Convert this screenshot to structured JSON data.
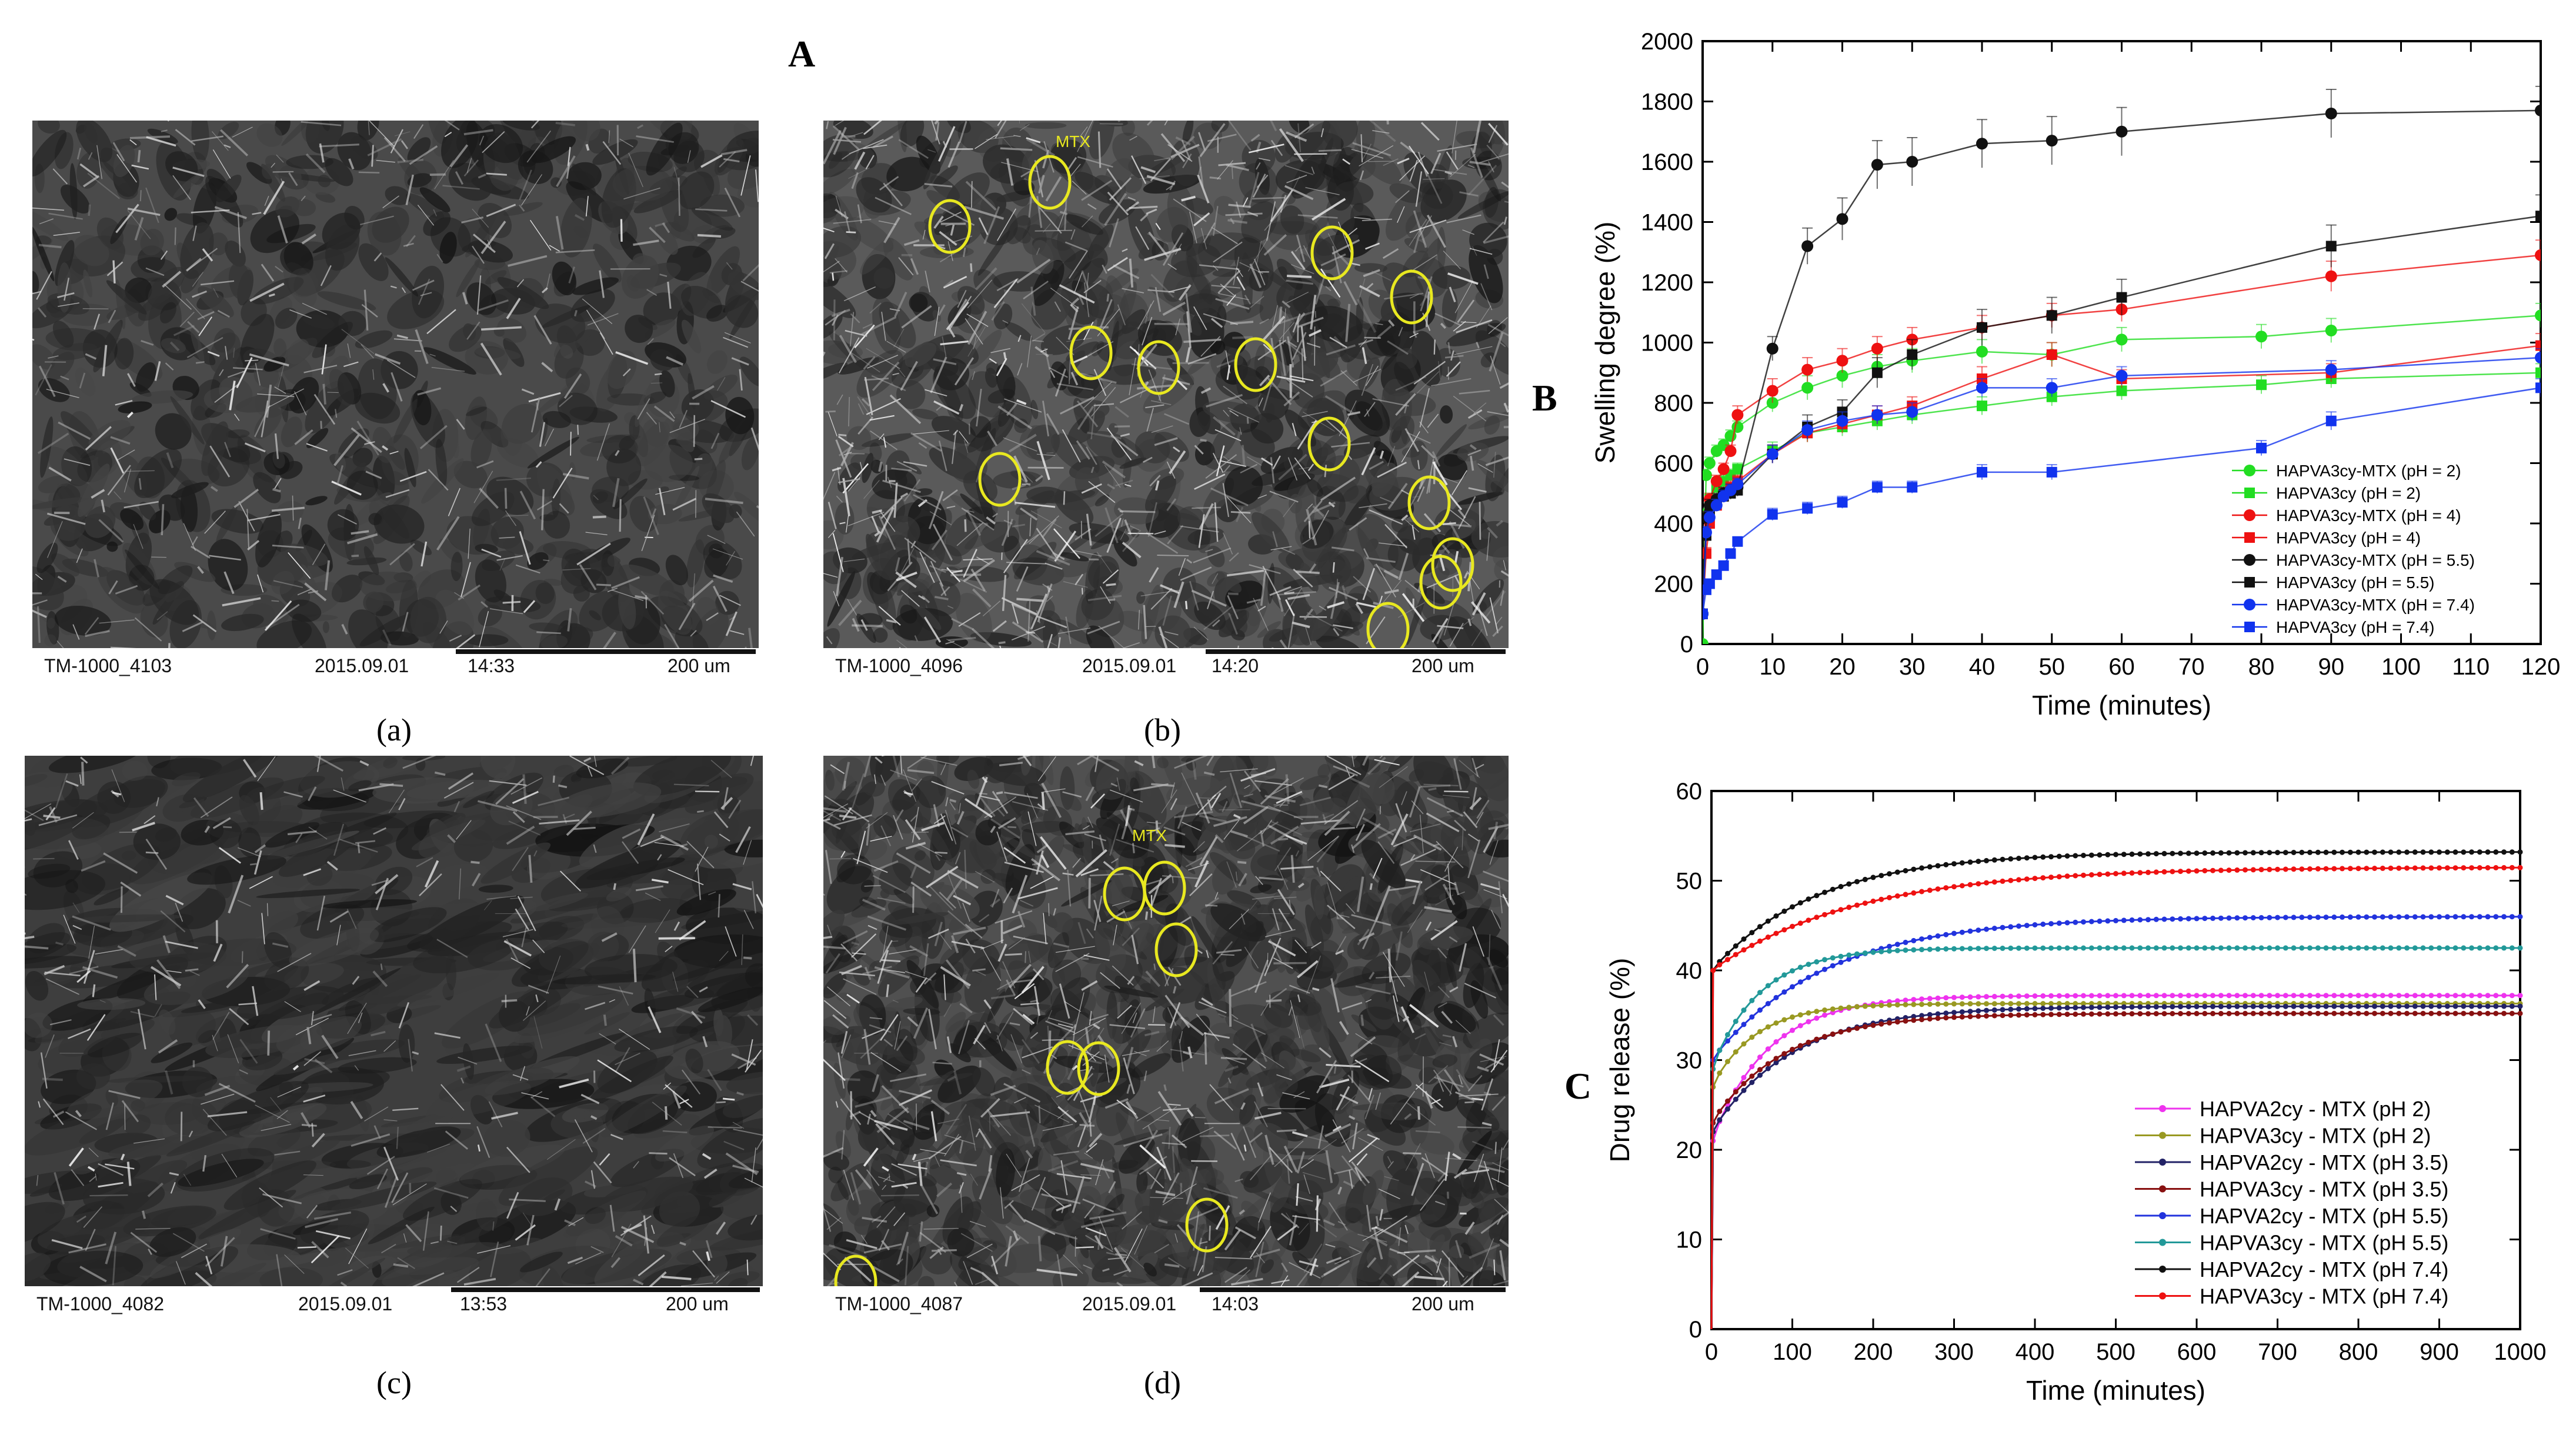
{
  "figure": {
    "label_A": "A",
    "label_B": "B",
    "label_C": "C"
  },
  "sem_panels": [
    {
      "id": "a",
      "caption": "(a)",
      "code": "TM-1000_4103",
      "date": "2015.09.01",
      "time": "14:33",
      "scale": "200 um",
      "mtx_label": ""
    },
    {
      "id": "b",
      "caption": "(b)",
      "code": "TM-1000_4096",
      "date": "2015.09.01",
      "time": "14:20",
      "scale": "200 um",
      "mtx_label": "MTX"
    },
    {
      "id": "c",
      "caption": "(c)",
      "code": "TM-1000_4082",
      "date": "2015.09.01",
      "time": "13:53",
      "scale": "200 um",
      "mtx_label": ""
    },
    {
      "id": "d",
      "caption": "(d)",
      "code": "TM-1000_4087",
      "date": "2015.09.01",
      "time": "14:03",
      "scale": "200 um",
      "mtx_label": "MTX"
    }
  ],
  "colors": {
    "green": "#22dd22",
    "red": "#ee1111",
    "black": "#111111",
    "blue": "#1133ee",
    "magenta": "#ee33ee",
    "olive": "#999922",
    "navy": "#222266",
    "darkred": "#881111",
    "blue2": "#2233dd",
    "teal": "#229999",
    "circle": "#e8e820"
  },
  "chart_data": [
    {
      "id": "B",
      "type": "line",
      "title": "",
      "xlabel": "Time (minutes)",
      "ylabel": "Swelling degree (%)",
      "xlim": [
        0,
        120
      ],
      "ylim": [
        0,
        2000
      ],
      "xticks": [
        0,
        10,
        20,
        30,
        40,
        50,
        60,
        70,
        80,
        90,
        100,
        110,
        120
      ],
      "yticks": [
        0,
        200,
        400,
        600,
        800,
        1000,
        1200,
        1400,
        1600,
        1800,
        2000
      ],
      "legend_position": "bottom-right",
      "series": [
        {
          "name": "HAPVA3cy-MTX (pH = 2)",
          "color": "#22dd22",
          "marker": "circle",
          "x": [
            0,
            0.5,
            1,
            2,
            3,
            4,
            5,
            10,
            15,
            20,
            25,
            30,
            40,
            50,
            60,
            80,
            90,
            120
          ],
          "y": [
            0,
            560,
            600,
            640,
            660,
            690,
            720,
            800,
            850,
            890,
            920,
            940,
            970,
            960,
            1010,
            1020,
            1040,
            1090
          ],
          "err": [
            0,
            20,
            20,
            20,
            20,
            20,
            20,
            30,
            40,
            40,
            40,
            40,
            40,
            40,
            40,
            40,
            40,
            40
          ]
        },
        {
          "name": "HAPVA3cy (pH = 2)",
          "color": "#22dd22",
          "marker": "square",
          "x": [
            0,
            0.5,
            1,
            2,
            3,
            4,
            5,
            10,
            15,
            20,
            25,
            30,
            40,
            50,
            60,
            80,
            90,
            120
          ],
          "y": [
            100,
            430,
            480,
            520,
            540,
            560,
            580,
            640,
            700,
            720,
            740,
            760,
            790,
            820,
            840,
            860,
            880,
            900
          ],
          "err": [
            0,
            20,
            20,
            20,
            20,
            20,
            20,
            30,
            30,
            30,
            30,
            30,
            30,
            30,
            30,
            30,
            30,
            30
          ]
        },
        {
          "name": "HAPVA3cy-MTX (pH = 4)",
          "color": "#ee1111",
          "marker": "circle",
          "x": [
            0,
            0.5,
            1,
            2,
            3,
            4,
            5,
            10,
            15,
            20,
            25,
            30,
            40,
            50,
            60,
            90,
            120
          ],
          "y": [
            100,
            420,
            480,
            540,
            580,
            640,
            760,
            840,
            910,
            940,
            980,
            1010,
            1050,
            1090,
            1110,
            1220,
            1290
          ],
          "err": [
            0,
            20,
            20,
            20,
            20,
            20,
            30,
            40,
            40,
            40,
            40,
            40,
            40,
            40,
            40,
            50,
            50
          ]
        },
        {
          "name": "HAPVA3cy (pH = 4)",
          "color": "#ee1111",
          "marker": "square",
          "x": [
            0,
            0.5,
            1,
            2,
            3,
            4,
            5,
            10,
            15,
            20,
            25,
            30,
            40,
            50,
            60,
            90,
            120
          ],
          "y": [
            100,
            300,
            400,
            460,
            500,
            520,
            540,
            630,
            700,
            730,
            760,
            790,
            880,
            960,
            880,
            900,
            990
          ],
          "err": [
            0,
            20,
            20,
            20,
            20,
            20,
            20,
            30,
            30,
            30,
            30,
            30,
            40,
            40,
            30,
            30,
            40
          ]
        },
        {
          "name": "HAPVA3cy-MTX (pH = 5.5)",
          "color": "#111111",
          "marker": "circle",
          "x": [
            0,
            0.5,
            1,
            2,
            3,
            4,
            5,
            10,
            15,
            20,
            25,
            30,
            40,
            50,
            60,
            90,
            120
          ],
          "y": [
            100,
            420,
            460,
            480,
            500,
            510,
            520,
            980,
            1320,
            1410,
            1590,
            1600,
            1660,
            1670,
            1700,
            1760,
            1770
          ],
          "err": [
            0,
            20,
            20,
            20,
            20,
            20,
            20,
            40,
            60,
            70,
            80,
            80,
            80,
            80,
            80,
            80,
            80
          ]
        },
        {
          "name": "HAPVA3cy (pH = 5.5)",
          "color": "#111111",
          "marker": "square",
          "x": [
            0,
            0.5,
            1,
            2,
            3,
            4,
            5,
            10,
            15,
            20,
            25,
            30,
            40,
            50,
            60,
            90,
            120
          ],
          "y": [
            100,
            360,
            430,
            470,
            490,
            500,
            510,
            630,
            720,
            770,
            900,
            960,
            1050,
            1090,
            1150,
            1320,
            1420
          ],
          "err": [
            0,
            20,
            20,
            20,
            20,
            20,
            20,
            30,
            40,
            40,
            50,
            50,
            60,
            60,
            60,
            70,
            70
          ]
        },
        {
          "name": "HAPVA3cy-MTX (pH = 7.4)",
          "color": "#1133ee",
          "marker": "circle",
          "x": [
            0,
            0.5,
            1,
            2,
            3,
            4,
            5,
            10,
            15,
            20,
            25,
            30,
            40,
            50,
            60,
            90,
            120
          ],
          "y": [
            100,
            370,
            420,
            460,
            490,
            510,
            530,
            630,
            710,
            740,
            760,
            770,
            850,
            850,
            890,
            910,
            950
          ],
          "err": [
            0,
            20,
            20,
            20,
            20,
            20,
            20,
            30,
            30,
            30,
            30,
            30,
            30,
            30,
            30,
            30,
            30
          ]
        },
        {
          "name": "HAPVA3cy (pH = 7.4)",
          "color": "#1133ee",
          "marker": "square",
          "x": [
            0,
            0.5,
            1,
            2,
            3,
            4,
            5,
            10,
            15,
            20,
            25,
            30,
            40,
            50,
            80,
            90,
            120
          ],
          "y": [
            100,
            180,
            200,
            230,
            260,
            300,
            340,
            430,
            450,
            470,
            520,
            520,
            570,
            570,
            650,
            740,
            850
          ],
          "err": [
            0,
            15,
            15,
            15,
            15,
            15,
            15,
            20,
            20,
            20,
            20,
            20,
            25,
            25,
            25,
            30,
            30
          ]
        }
      ]
    },
    {
      "id": "C",
      "type": "line",
      "title": "",
      "xlabel": "Time (minutes)",
      "ylabel": "Drug release (%)",
      "xlim": [
        0,
        1000
      ],
      "ylim": [
        0,
        60
      ],
      "xticks": [
        0,
        100,
        200,
        300,
        400,
        500,
        600,
        700,
        800,
        900,
        1000
      ],
      "yticks": [
        0,
        10,
        20,
        30,
        40,
        50,
        60
      ],
      "legend_position": "bottom-right",
      "model": "y = plateau - (plateau - start) * exp(-t / tau), sampled every 10 minutes",
      "series": [
        {
          "name": "HAPVA2cy - MTX (pH 2)",
          "color": "#ee33ee",
          "start": 21,
          "plateau": 37.2,
          "tau": 70
        },
        {
          "name": "HAPVA3cy - MTX (pH 2)",
          "color": "#999922",
          "start": 27,
          "plateau": 36.3,
          "tau": 55
        },
        {
          "name": "HAPVA2cy - MTX (pH 3.5)",
          "color": "#222266",
          "start": 22,
          "plateau": 36.0,
          "tau": 100
        },
        {
          "name": "HAPVA3cy - MTX (pH 3.5)",
          "color": "#881111",
          "start": 23,
          "plateau": 35.2,
          "tau": 90
        },
        {
          "name": "HAPVA2cy - MTX (pH 5.5)",
          "color": "#2233dd",
          "start": 30,
          "plateau": 46.0,
          "tau": 140
        },
        {
          "name": "HAPVA3cy - MTX (pH 5.5)",
          "color": "#229999",
          "start": 29,
          "plateau": 42.5,
          "tau": 60
        },
        {
          "name": "HAPVA2cy - MTX (pH 7.4)",
          "color": "#111111",
          "start": 40,
          "plateau": 53.2,
          "tau": 130
        },
        {
          "name": "HAPVA3cy - MTX (pH 7.4)",
          "color": "#ee1111",
          "start": 40,
          "plateau": 51.5,
          "tau": 180
        }
      ]
    }
  ]
}
